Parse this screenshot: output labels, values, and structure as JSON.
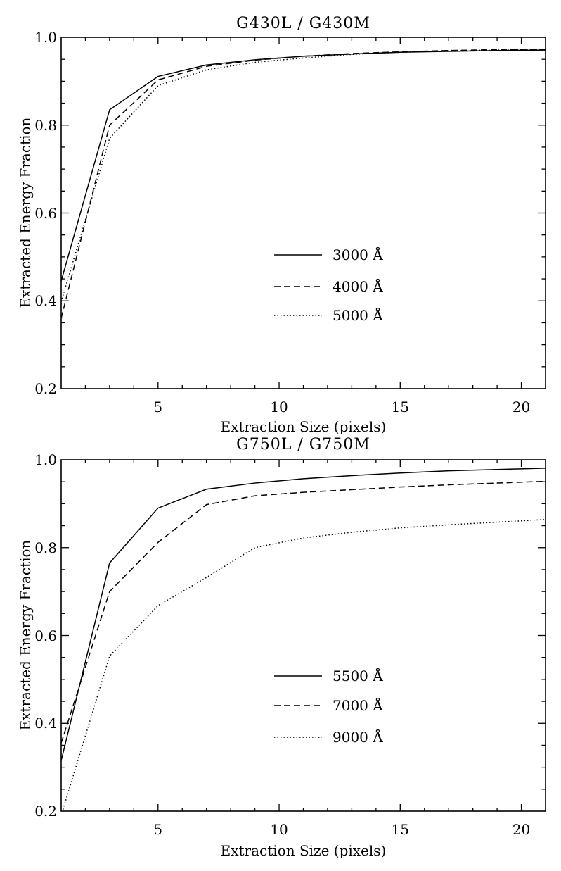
{
  "page": {
    "background": "#ffffff",
    "line_color": "#000000"
  },
  "chart_data": [
    {
      "type": "line",
      "title": "G430L / G430M",
      "xlabel": "Extraction Size (pixels)",
      "ylabel": "Extracted Energy Fraction",
      "xlim": [
        1,
        21
      ],
      "ylim": [
        0.2,
        1.0
      ],
      "grid": false,
      "legend_position": "inside-center-right",
      "x_major_ticks": [
        5,
        10,
        15,
        20
      ],
      "x_tick_labels": [
        "5",
        "10",
        "15",
        "20"
      ],
      "x_minor_step": 1,
      "y_major_ticks": [
        1.0,
        0.8,
        0.6,
        0.4,
        0.2
      ],
      "y_tick_labels": [
        "1.0",
        "0.8",
        "0.6",
        "0.4",
        "0.2"
      ],
      "y_minor_step": 0.05,
      "x": [
        1,
        3,
        5,
        7,
        9,
        11,
        13,
        15,
        17,
        19,
        21
      ],
      "series": [
        {
          "name": "3000 Å",
          "style": "solid",
          "values": [
            0.445,
            0.835,
            0.911,
            0.937,
            0.949,
            0.957,
            0.962,
            0.966,
            0.968,
            0.97,
            0.971
          ]
        },
        {
          "name": "4000 Å",
          "style": "dashed",
          "values": [
            0.36,
            0.8,
            0.903,
            0.934,
            0.948,
            0.957,
            0.963,
            0.967,
            0.97,
            0.972,
            0.973
          ]
        },
        {
          "name": "5000 Å",
          "style": "dotted",
          "values": [
            0.398,
            0.77,
            0.89,
            0.926,
            0.943,
            0.953,
            0.961,
            0.966,
            0.969,
            0.971,
            0.973
          ]
        }
      ]
    },
    {
      "type": "line",
      "title": "G750L / G750M",
      "xlabel": "Extraction Size (pixels)",
      "ylabel": "Extracted Energy Fraction",
      "xlim": [
        1,
        21
      ],
      "ylim": [
        0.2,
        1.0
      ],
      "grid": false,
      "legend_position": "inside-center-right",
      "x_major_ticks": [
        5,
        10,
        15,
        20
      ],
      "x_tick_labels": [
        "5",
        "10",
        "15",
        "20"
      ],
      "x_minor_step": 1,
      "y_major_ticks": [
        1.0,
        0.8,
        0.6,
        0.4,
        0.2
      ],
      "y_tick_labels": [
        "1.0",
        "0.8",
        "0.6",
        "0.4",
        "0.2"
      ],
      "y_minor_step": 0.05,
      "x": [
        1,
        3,
        5,
        7,
        9,
        11,
        13,
        15,
        17,
        19,
        21
      ],
      "series": [
        {
          "name": "5500 Å",
          "style": "solid",
          "values": [
            0.315,
            0.765,
            0.89,
            0.933,
            0.947,
            0.957,
            0.964,
            0.97,
            0.975,
            0.978,
            0.981
          ]
        },
        {
          "name": "7000 Å",
          "style": "dashed",
          "values": [
            0.355,
            0.7,
            0.812,
            0.898,
            0.918,
            0.926,
            0.932,
            0.938,
            0.943,
            0.947,
            0.951
          ]
        },
        {
          "name": "9000 Å",
          "style": "dotted",
          "values": [
            0.19,
            0.553,
            0.668,
            0.732,
            0.8,
            0.822,
            0.835,
            0.845,
            0.852,
            0.858,
            0.864
          ]
        }
      ]
    }
  ]
}
